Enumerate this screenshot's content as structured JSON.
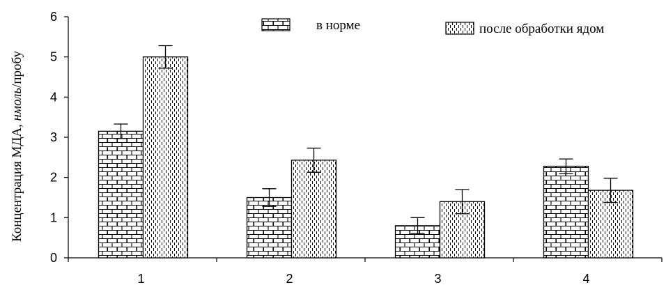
{
  "chart_data": {
    "type": "bar",
    "categories": [
      "1",
      "2",
      "3",
      "4"
    ],
    "series": [
      {
        "name": "в норме",
        "values": [
          3.15,
          1.5,
          0.8,
          2.28
        ],
        "errors": [
          0.18,
          0.22,
          0.2,
          0.18
        ],
        "pattern": "brick"
      },
      {
        "name": "после обработки ядом",
        "values": [
          5.0,
          2.43,
          1.4,
          1.68
        ],
        "errors": [
          0.28,
          0.3,
          0.3,
          0.3
        ],
        "pattern": "dashed"
      }
    ],
    "ylim": [
      0,
      6
    ],
    "yticks": [
      "0",
      "1",
      "2",
      "3",
      "4",
      "5",
      "6"
    ],
    "ylabel": {
      "prefix": "Концентрация МДА, ",
      "italic": "нмоль",
      "suffix": "/пробу"
    },
    "title": "",
    "xlabel": "",
    "grid": false,
    "legend_position": "top"
  }
}
